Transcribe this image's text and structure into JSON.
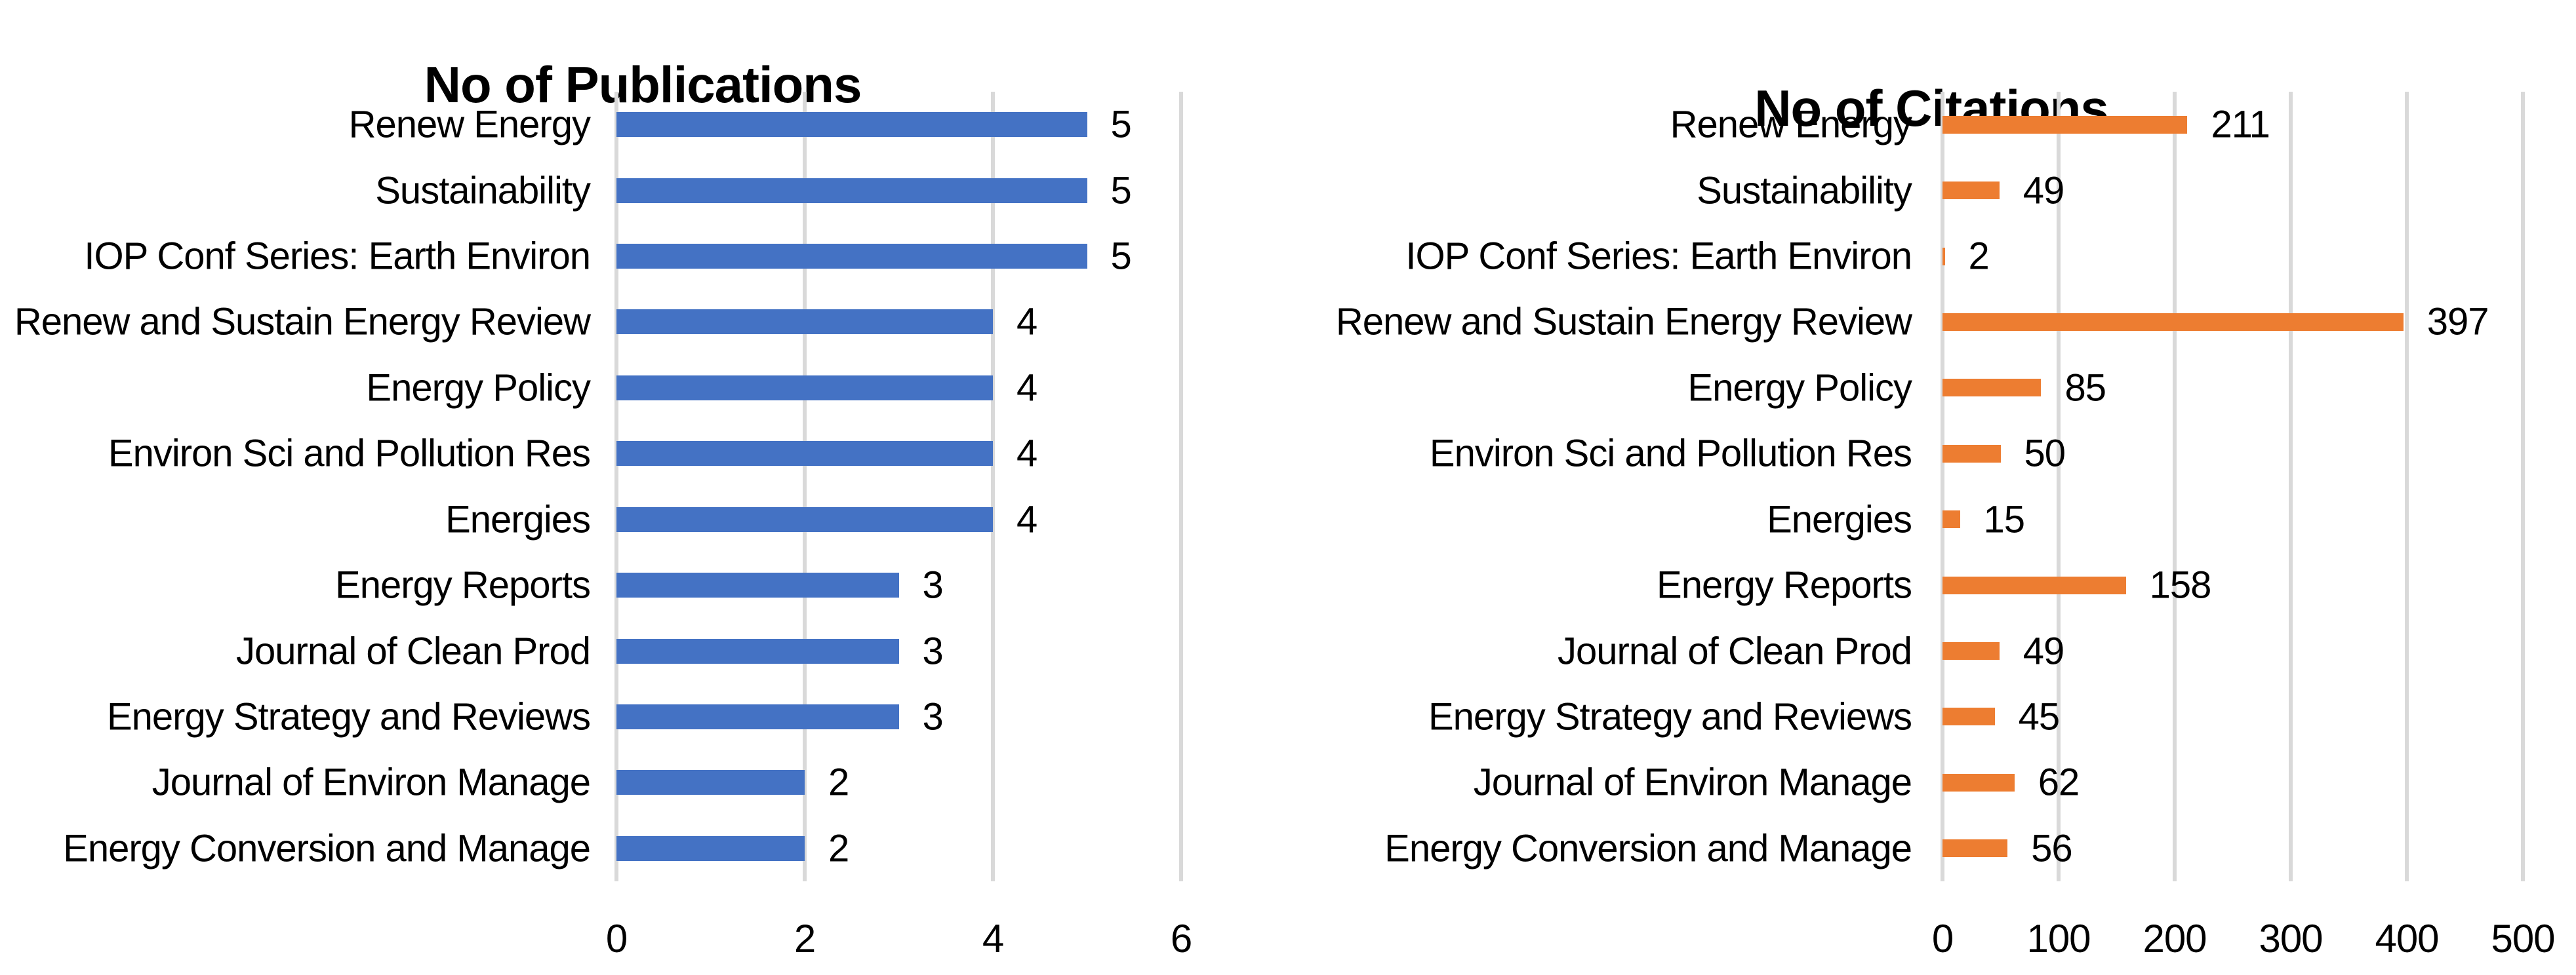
{
  "figure": {
    "background": "#FFFFFF",
    "text_color": "#000000"
  },
  "chart_data": [
    {
      "type": "bar",
      "orientation": "horizontal",
      "title": "No of Publications",
      "categories": [
        "Renew Energy",
        "Sustainability",
        "IOP Conf Series: Earth Environ",
        "Renew and Sustain Energy Review",
        "Energy Policy",
        "Environ Sci and Pollution Res",
        "Energies",
        "Energy Reports",
        "Journal of Clean Prod",
        "Energy Strategy and Reviews",
        "Journal of Environ Manage",
        "Energy Conversion and Manage"
      ],
      "values": [
        5,
        5,
        5,
        4,
        4,
        4,
        4,
        3,
        3,
        3,
        2,
        2
      ],
      "value_labels": [
        5,
        5,
        5,
        4,
        4,
        4,
        4,
        3,
        3,
        3,
        2,
        2
      ],
      "xlabel": "",
      "ylabel": "",
      "xlim": [
        0,
        6
      ],
      "xticks": [
        0,
        2,
        4,
        6
      ],
      "grid": true,
      "legend_position": "none",
      "bar_color": "#4472C4",
      "gridline_color": "#D9D9D9"
    },
    {
      "type": "bar",
      "orientation": "horizontal",
      "title": "No of Citations",
      "categories": [
        "Renew Energy",
        "Sustainability",
        "IOP Conf Series: Earth Environ",
        "Renew and Sustain Energy Review",
        "Energy Policy",
        "Environ Sci and Pollution Res",
        "Energies",
        "Energy Reports",
        "Journal of Clean Prod",
        "Energy Strategy and Reviews",
        "Journal of Environ Manage",
        "Energy Conversion and Manage"
      ],
      "values": [
        211,
        49,
        2,
        397,
        85,
        50,
        15,
        158,
        49,
        45,
        62,
        56
      ],
      "value_labels": [
        211,
        49,
        2,
        397,
        85,
        50,
        15,
        158,
        49,
        45,
        62,
        56
      ],
      "xlabel": "",
      "ylabel": "",
      "xlim": [
        0,
        500
      ],
      "xticks": [
        0,
        100,
        200,
        300,
        400,
        500
      ],
      "grid": true,
      "legend_position": "none",
      "bar_color": "#ED7D31",
      "gridline_color": "#D9D9D9"
    }
  ]
}
